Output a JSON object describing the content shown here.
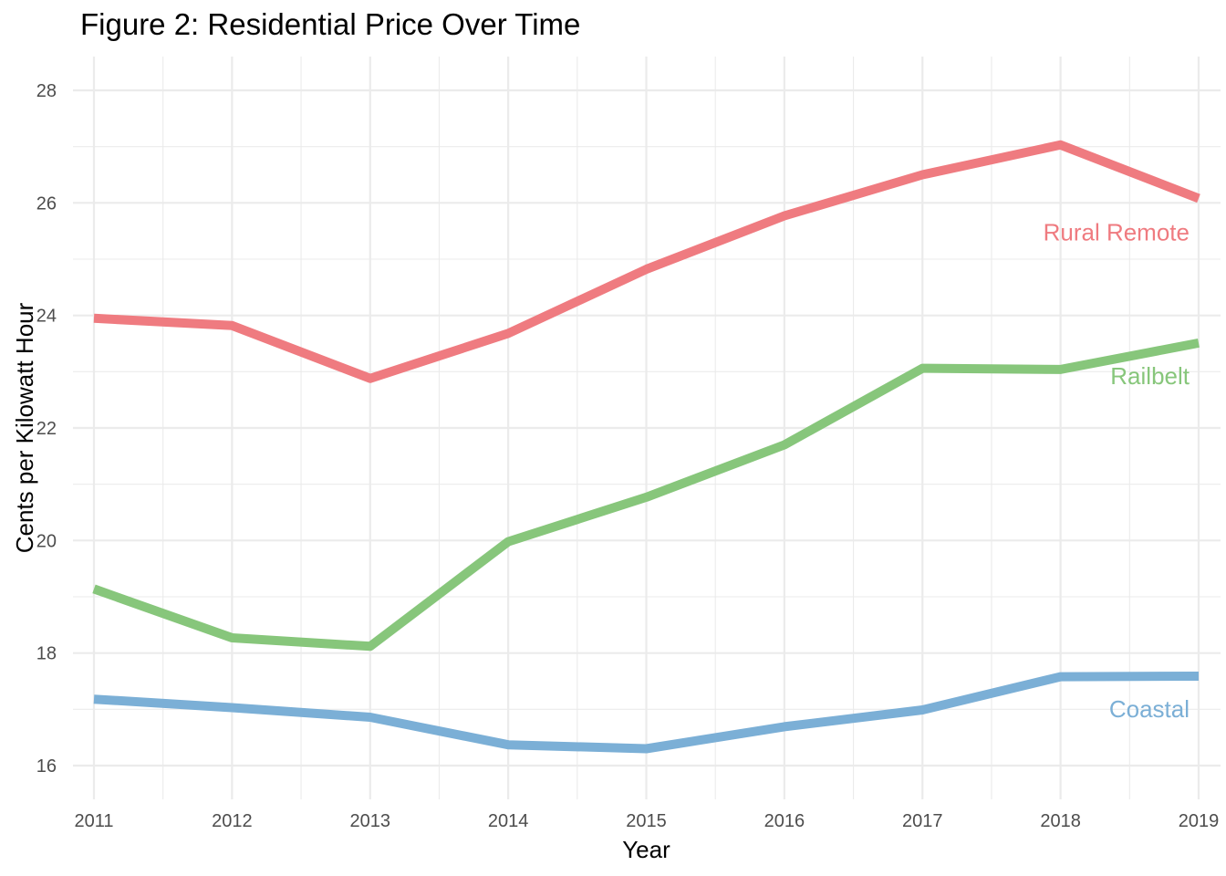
{
  "chart_data": {
    "type": "line",
    "title": "Figure 2: Residential Price Over Time",
    "xlabel": "Year",
    "ylabel": "Cents per Kilowatt Hour",
    "x": [
      2011,
      2012,
      2013,
      2014,
      2015,
      2016,
      2017,
      2018,
      2019
    ],
    "xlim": [
      2011,
      2019
    ],
    "ylim": [
      15.4,
      28.6
    ],
    "y_ticks": [
      16,
      18,
      20,
      22,
      24,
      26,
      28
    ],
    "grid": true,
    "legend": "direct labels at right end of lines",
    "series": [
      {
        "name": "Rural Remote",
        "color": "#ef7b80",
        "values": [
          23.95,
          23.82,
          22.88,
          23.68,
          24.82,
          25.77,
          26.5,
          27.03,
          26.08
        ]
      },
      {
        "name": "Railbelt",
        "color": "#87c67b",
        "values": [
          19.14,
          18.27,
          18.12,
          19.98,
          20.77,
          21.7,
          23.06,
          23.04,
          23.51
        ]
      },
      {
        "name": "Coastal",
        "color": "#7bafd6",
        "values": [
          17.18,
          17.03,
          16.86,
          16.37,
          16.3,
          16.69,
          16.99,
          17.58,
          17.59
        ]
      }
    ]
  }
}
